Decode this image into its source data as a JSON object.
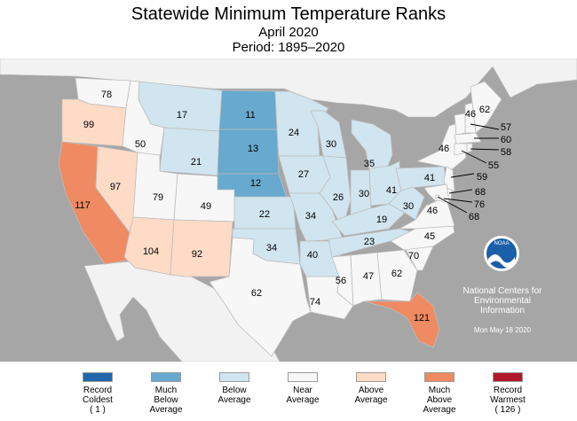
{
  "title": "Statewide Minimum Temperature Ranks",
  "subtitle": "April 2020",
  "period": "Period: 1895–2020",
  "colors": {
    "record_coldest": "#2166ac",
    "much_below": "#67a9cf",
    "below": "#d1e5f0",
    "near": "#f7f7f7",
    "above": "#fddbc7",
    "much_above": "#ef8a62",
    "record_warmest": "#b2182b",
    "background": "#a6a6a6"
  },
  "legend": [
    {
      "key": "record_coldest",
      "label": "Record\nColdest\n( 1 )"
    },
    {
      "key": "much_below",
      "label": "Much\nBelow\nAverage"
    },
    {
      "key": "below",
      "label": "Below\nAverage"
    },
    {
      "key": "near",
      "label": "Near\nAverage"
    },
    {
      "key": "above",
      "label": "Above\nAverage"
    },
    {
      "key": "much_above",
      "label": "Much\nAbove\nAverage"
    },
    {
      "key": "record_warmest",
      "label": "Record\nWarmest\n( 126 )"
    }
  ],
  "chart_data": {
    "type": "choropleth",
    "states": [
      {
        "state": "WA",
        "rank": 78,
        "category": "near"
      },
      {
        "state": "OR",
        "rank": 99,
        "category": "above"
      },
      {
        "state": "CA",
        "rank": 117,
        "category": "much_above"
      },
      {
        "state": "NV",
        "rank": 97,
        "category": "above"
      },
      {
        "state": "ID",
        "rank": 50,
        "category": "near"
      },
      {
        "state": "MT",
        "rank": 17,
        "category": "below"
      },
      {
        "state": "WY",
        "rank": 21,
        "category": "below"
      },
      {
        "state": "UT",
        "rank": 79,
        "category": "near"
      },
      {
        "state": "CO",
        "rank": 49,
        "category": "near"
      },
      {
        "state": "AZ",
        "rank": 104,
        "category": "above"
      },
      {
        "state": "NM",
        "rank": 92,
        "category": "above"
      },
      {
        "state": "ND",
        "rank": 11,
        "category": "much_below"
      },
      {
        "state": "SD",
        "rank": 13,
        "category": "much_below"
      },
      {
        "state": "NE",
        "rank": 12,
        "category": "much_below"
      },
      {
        "state": "KS",
        "rank": 22,
        "category": "below"
      },
      {
        "state": "OK",
        "rank": 34,
        "category": "below"
      },
      {
        "state": "TX",
        "rank": 62,
        "category": "near"
      },
      {
        "state": "MN",
        "rank": 24,
        "category": "below"
      },
      {
        "state": "IA",
        "rank": 27,
        "category": "below"
      },
      {
        "state": "MO",
        "rank": 34,
        "category": "below"
      },
      {
        "state": "AR",
        "rank": 40,
        "category": "below"
      },
      {
        "state": "LA",
        "rank": 74,
        "category": "near"
      },
      {
        "state": "WI",
        "rank": 30,
        "category": "below"
      },
      {
        "state": "IL",
        "rank": 26,
        "category": "below"
      },
      {
        "state": "MI",
        "rank": 35,
        "category": "below"
      },
      {
        "state": "IN",
        "rank": 30,
        "category": "below"
      },
      {
        "state": "OH",
        "rank": 41,
        "category": "below"
      },
      {
        "state": "KY",
        "rank": 19,
        "category": "below"
      },
      {
        "state": "TN",
        "rank": 23,
        "category": "below"
      },
      {
        "state": "MS",
        "rank": 56,
        "category": "near"
      },
      {
        "state": "AL",
        "rank": 47,
        "category": "near"
      },
      {
        "state": "GA",
        "rank": 62,
        "category": "near"
      },
      {
        "state": "FL",
        "rank": 121,
        "category": "much_above"
      },
      {
        "state": "SC",
        "rank": 70,
        "category": "near"
      },
      {
        "state": "NC",
        "rank": 45,
        "category": "near"
      },
      {
        "state": "VA",
        "rank": 46,
        "category": "near"
      },
      {
        "state": "WV",
        "rank": 30,
        "category": "below"
      },
      {
        "state": "PA",
        "rank": 41,
        "category": "below"
      },
      {
        "state": "NY",
        "rank": 46,
        "category": "near"
      },
      {
        "state": "ME",
        "rank": 62,
        "category": "near"
      },
      {
        "state": "NH",
        "rank": 57,
        "category": "near"
      },
      {
        "state": "VT",
        "rank": 46,
        "category": "near"
      },
      {
        "state": "MA",
        "rank": 60,
        "category": "near"
      },
      {
        "state": "RI",
        "rank": 58,
        "category": "near"
      },
      {
        "state": "CT",
        "rank": 55,
        "category": "near"
      },
      {
        "state": "NJ",
        "rank": 59,
        "category": "near"
      },
      {
        "state": "DE",
        "rank": 68,
        "category": "near"
      },
      {
        "state": "MD",
        "rank": 76,
        "category": "near"
      },
      {
        "state": "DC",
        "rank": 68,
        "category": "near"
      }
    ]
  },
  "noaa": {
    "logo_text": "NOAA",
    "org": "National Centers for\nEnvironmental\nInformation",
    "date": "Mon May 18 2020"
  }
}
